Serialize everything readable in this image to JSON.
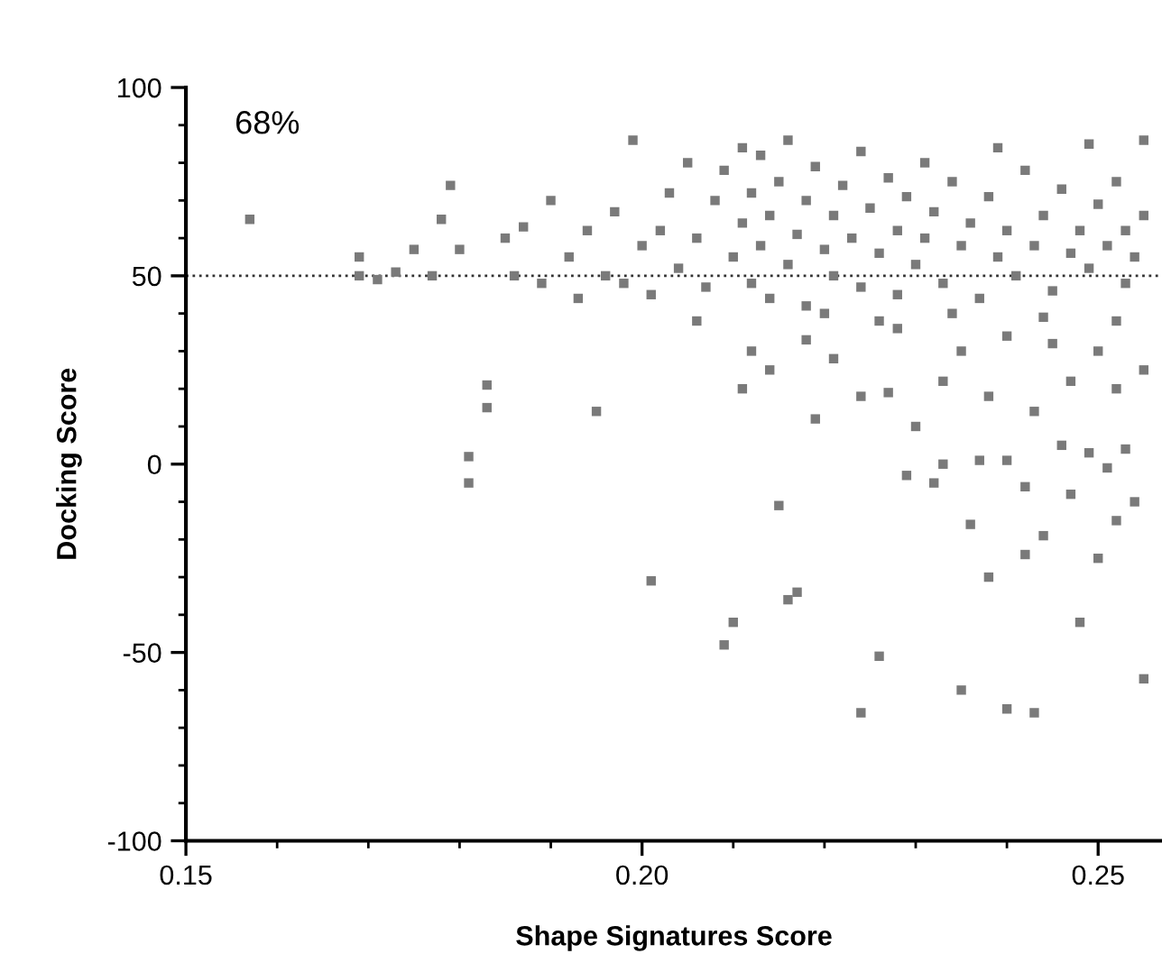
{
  "chart_data": {
    "type": "scatter",
    "xlabel": "Shape Signatures Score",
    "ylabel": "Docking Score",
    "annotations": [
      "68%"
    ],
    "xlim": [
      0.15,
      0.257
    ],
    "xticks": [
      {
        "value": 0.15,
        "label": "0.15"
      },
      {
        "value": 0.2,
        "label": "0.20"
      },
      {
        "value": 0.25,
        "label": "0.25"
      }
    ],
    "ylim": [
      -100,
      100
    ],
    "yticks": [
      -100,
      -50,
      0,
      50,
      100
    ],
    "marker": "square",
    "grid": false,
    "ref_lines": [
      {
        "axis": "y",
        "value": 50,
        "color": "#333333",
        "line_style": "dotted"
      }
    ],
    "series": [
      {
        "color": "#7a7a7a",
        "x": [
          0.157,
          0.169,
          0.169,
          0.171,
          0.173,
          0.175,
          0.177,
          0.178,
          0.179,
          0.18,
          0.181,
          0.181,
          0.183,
          0.183,
          0.185,
          0.186,
          0.187,
          0.189,
          0.19,
          0.195,
          0.201,
          0.209,
          0.21,
          0.215,
          0.216,
          0.217,
          0.224,
          0.226,
          0.235,
          0.24,
          0.243,
          0.248,
          0.255,
          0.232,
          0.238,
          0.236,
          0.242,
          0.244,
          0.25,
          0.252,
          0.254,
          0.237,
          0.24,
          0.246,
          0.249,
          0.253,
          0.23,
          0.233,
          0.229,
          0.242,
          0.247,
          0.251,
          0.227,
          0.224,
          0.219,
          0.211,
          0.214,
          0.221,
          0.233,
          0.238,
          0.243,
          0.247,
          0.252,
          0.255,
          0.228,
          0.235,
          0.24,
          0.245,
          0.25,
          0.206,
          0.212,
          0.218,
          0.192,
          0.194,
          0.196,
          0.197,
          0.199,
          0.2,
          0.201,
          0.202,
          0.203,
          0.204,
          0.205,
          0.206,
          0.207,
          0.208,
          0.209,
          0.21,
          0.211,
          0.211,
          0.212,
          0.212,
          0.213,
          0.213,
          0.214,
          0.214,
          0.215,
          0.216,
          0.216,
          0.217,
          0.218,
          0.218,
          0.219,
          0.22,
          0.221,
          0.221,
          0.222,
          0.223,
          0.224,
          0.224,
          0.225,
          0.226,
          0.227,
          0.228,
          0.228,
          0.229,
          0.23,
          0.231,
          0.231,
          0.232,
          0.233,
          0.234,
          0.235,
          0.236,
          0.237,
          0.238,
          0.239,
          0.239,
          0.24,
          0.241,
          0.242,
          0.243,
          0.244,
          0.245,
          0.246,
          0.247,
          0.248,
          0.249,
          0.249,
          0.25,
          0.251,
          0.252,
          0.253,
          0.253,
          0.254,
          0.255,
          0.255,
          0.198,
          0.193,
          0.22,
          0.226,
          0.234,
          0.244,
          0.252
        ],
        "values": [
          65,
          55,
          50,
          49,
          51,
          57,
          50,
          65,
          74,
          57,
          2,
          -5,
          21,
          15,
          60,
          50,
          63,
          48,
          70,
          14,
          -31,
          -48,
          -42,
          -11,
          -36,
          -34,
          -66,
          -51,
          -60,
          -65,
          -66,
          -42,
          -57,
          -5,
          -30,
          -16,
          -24,
          -19,
          -25,
          -15,
          -10,
          1,
          1,
          5,
          3,
          4,
          10,
          0,
          -3,
          -6,
          -8,
          -1,
          19,
          18,
          12,
          20,
          25,
          28,
          22,
          18,
          14,
          22,
          20,
          25,
          36,
          30,
          34,
          32,
          30,
          38,
          30,
          33,
          55,
          62,
          50,
          67,
          86,
          58,
          45,
          62,
          72,
          52,
          80,
          60,
          47,
          70,
          78,
          55,
          64,
          84,
          48,
          72,
          58,
          82,
          66,
          44,
          75,
          53,
          86,
          61,
          70,
          42,
          79,
          57,
          66,
          50,
          74,
          60,
          83,
          47,
          68,
          56,
          76,
          62,
          45,
          71,
          53,
          80,
          60,
          67,
          48,
          75,
          58,
          64,
          44,
          71,
          84,
          55,
          62,
          50,
          78,
          58,
          66,
          46,
          73,
          56,
          62,
          85,
          52,
          69,
          58,
          75,
          48,
          62,
          55,
          86,
          66,
          48,
          44,
          40,
          38,
          40,
          39,
          38
        ]
      }
    ]
  }
}
